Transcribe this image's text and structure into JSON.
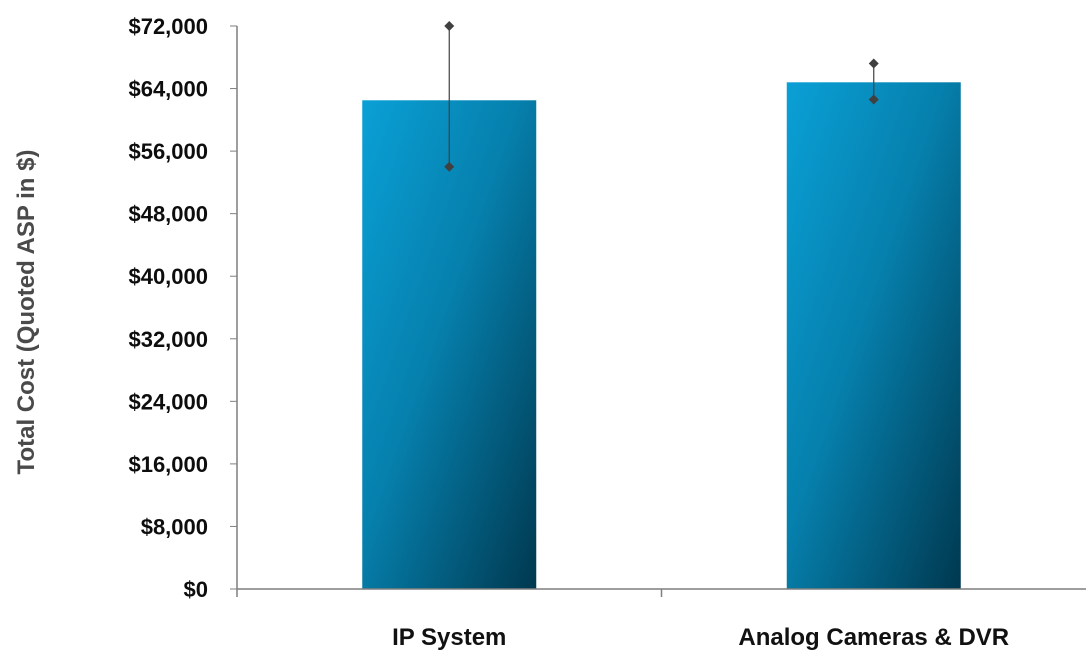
{
  "chart_data": {
    "type": "bar",
    "title": "",
    "xlabel": "",
    "ylabel": "Total Cost (Quoted ASP in $)",
    "ylim": [
      0,
      72000
    ],
    "yticks": [
      0,
      8000,
      16000,
      24000,
      32000,
      40000,
      48000,
      56000,
      64000,
      72000
    ],
    "ytick_labels": [
      "$0",
      "$8,000",
      "$16,000",
      "$24,000",
      "$32,000",
      "$40,000",
      "$48,000",
      "$56,000",
      "$64,000",
      "$72,000"
    ],
    "categories": [
      "IP System",
      "Analog Cameras & DVR"
    ],
    "values": [
      62500,
      64800
    ],
    "error_bars": [
      {
        "low": 54000,
        "high": 72000
      },
      {
        "low": 62600,
        "high": 67200
      }
    ],
    "grid": false,
    "legend": "none",
    "colors": {
      "bar_light": "#0aa0d6",
      "bar_dark": "#00384f",
      "axis": "#7f7f7f",
      "error": "#404040"
    }
  }
}
